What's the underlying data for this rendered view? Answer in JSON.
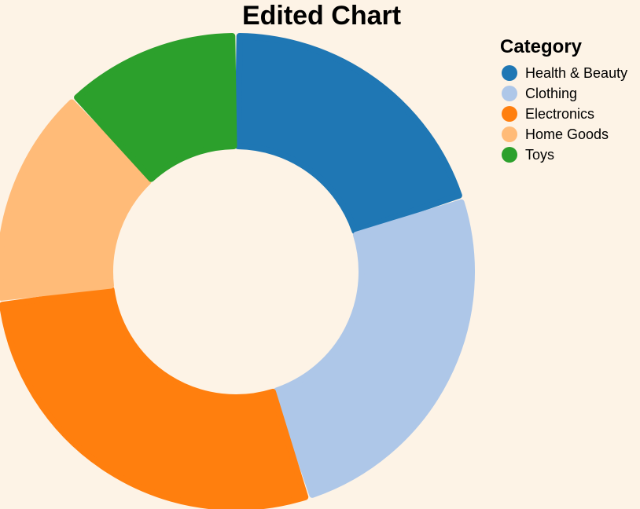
{
  "chart_data": {
    "type": "pie",
    "title": "Edited Chart",
    "legend_title": "Category",
    "legend_placement": "top-right",
    "categories": [
      "Health & Beauty",
      "Clothing",
      "Electronics",
      "Home Goods",
      "Toys"
    ],
    "values": [
      20,
      25,
      28,
      15,
      12
    ],
    "colors": [
      "#1f77b4",
      "#aec7e8",
      "#ff7f0e",
      "#ffbb78",
      "#2ca02c"
    ]
  }
}
